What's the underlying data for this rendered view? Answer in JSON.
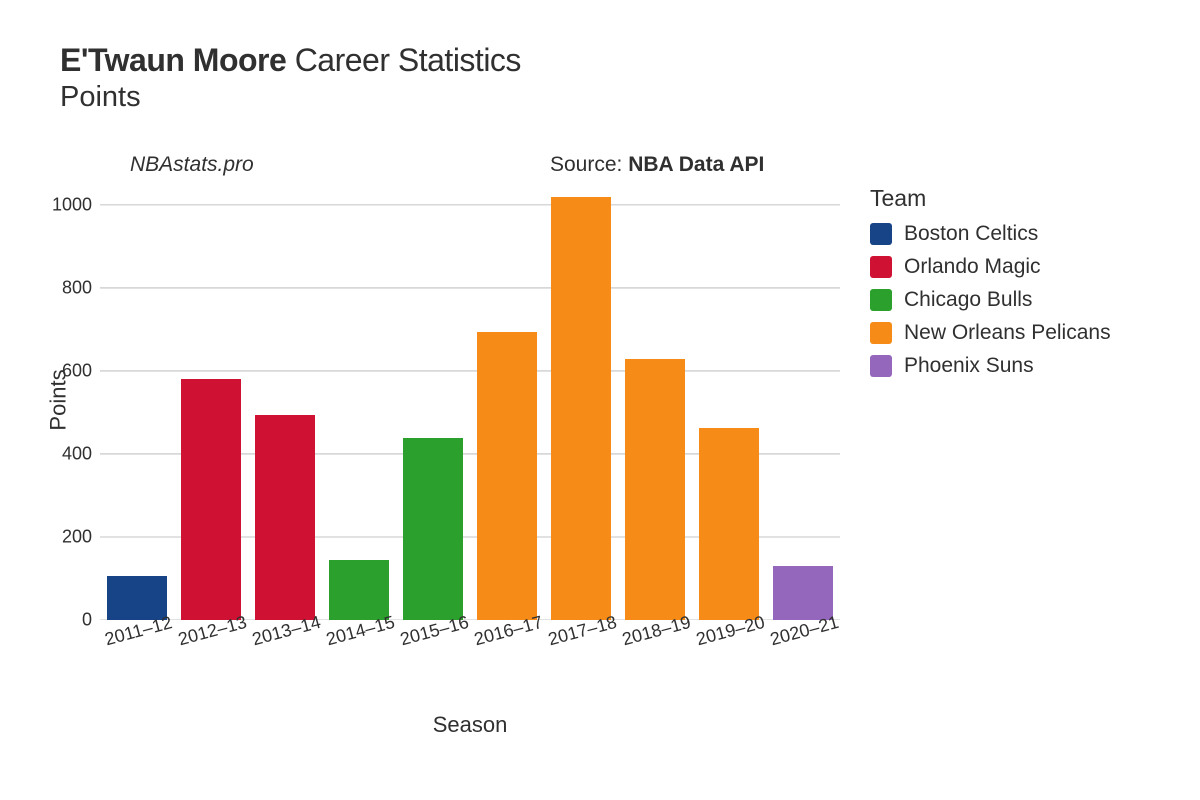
{
  "title": {
    "player_name": "E'Twaun Moore",
    "suffix": "Career Statistics",
    "metric": "Points"
  },
  "watermark": "NBAstats.pro",
  "source": {
    "prefix": "Source: ",
    "name": "NBA Data API"
  },
  "axes": {
    "xlabel": "Season",
    "ylabel": "Points"
  },
  "chart": {
    "type": "bar",
    "bar_width": 0.8,
    "ylim": [
      0,
      1060
    ],
    "yticks": [
      0,
      200,
      400,
      600,
      800,
      1000
    ],
    "categories": [
      "2011–12",
      "2012–13",
      "2013–14",
      "2014–15",
      "2015–16",
      "2016–17",
      "2017–18",
      "2018–19",
      "2019–20",
      "2020–21"
    ],
    "values": [
      105,
      580,
      495,
      145,
      438,
      695,
      1018,
      628,
      462,
      130
    ],
    "team_idx": [
      0,
      1,
      1,
      2,
      2,
      3,
      3,
      3,
      3,
      4
    ],
    "background_color": "#ffffff",
    "grid_color": "#b0b0b0",
    "tick_fontsize": 18,
    "axis_title_fontsize": 22,
    "xtick_rotation_deg": -15
  },
  "teams": [
    {
      "name": "Boston Celtics",
      "color": "#174487"
    },
    {
      "name": "Orlando Magic",
      "color": "#cf1233"
    },
    {
      "name": "Chicago Bulls",
      "color": "#2ca02c"
    },
    {
      "name": "New Orleans Pelicans",
      "color": "#f68c17"
    },
    {
      "name": "Phoenix Suns",
      "color": "#9467bd"
    }
  ],
  "legend": {
    "title": "Team"
  }
}
